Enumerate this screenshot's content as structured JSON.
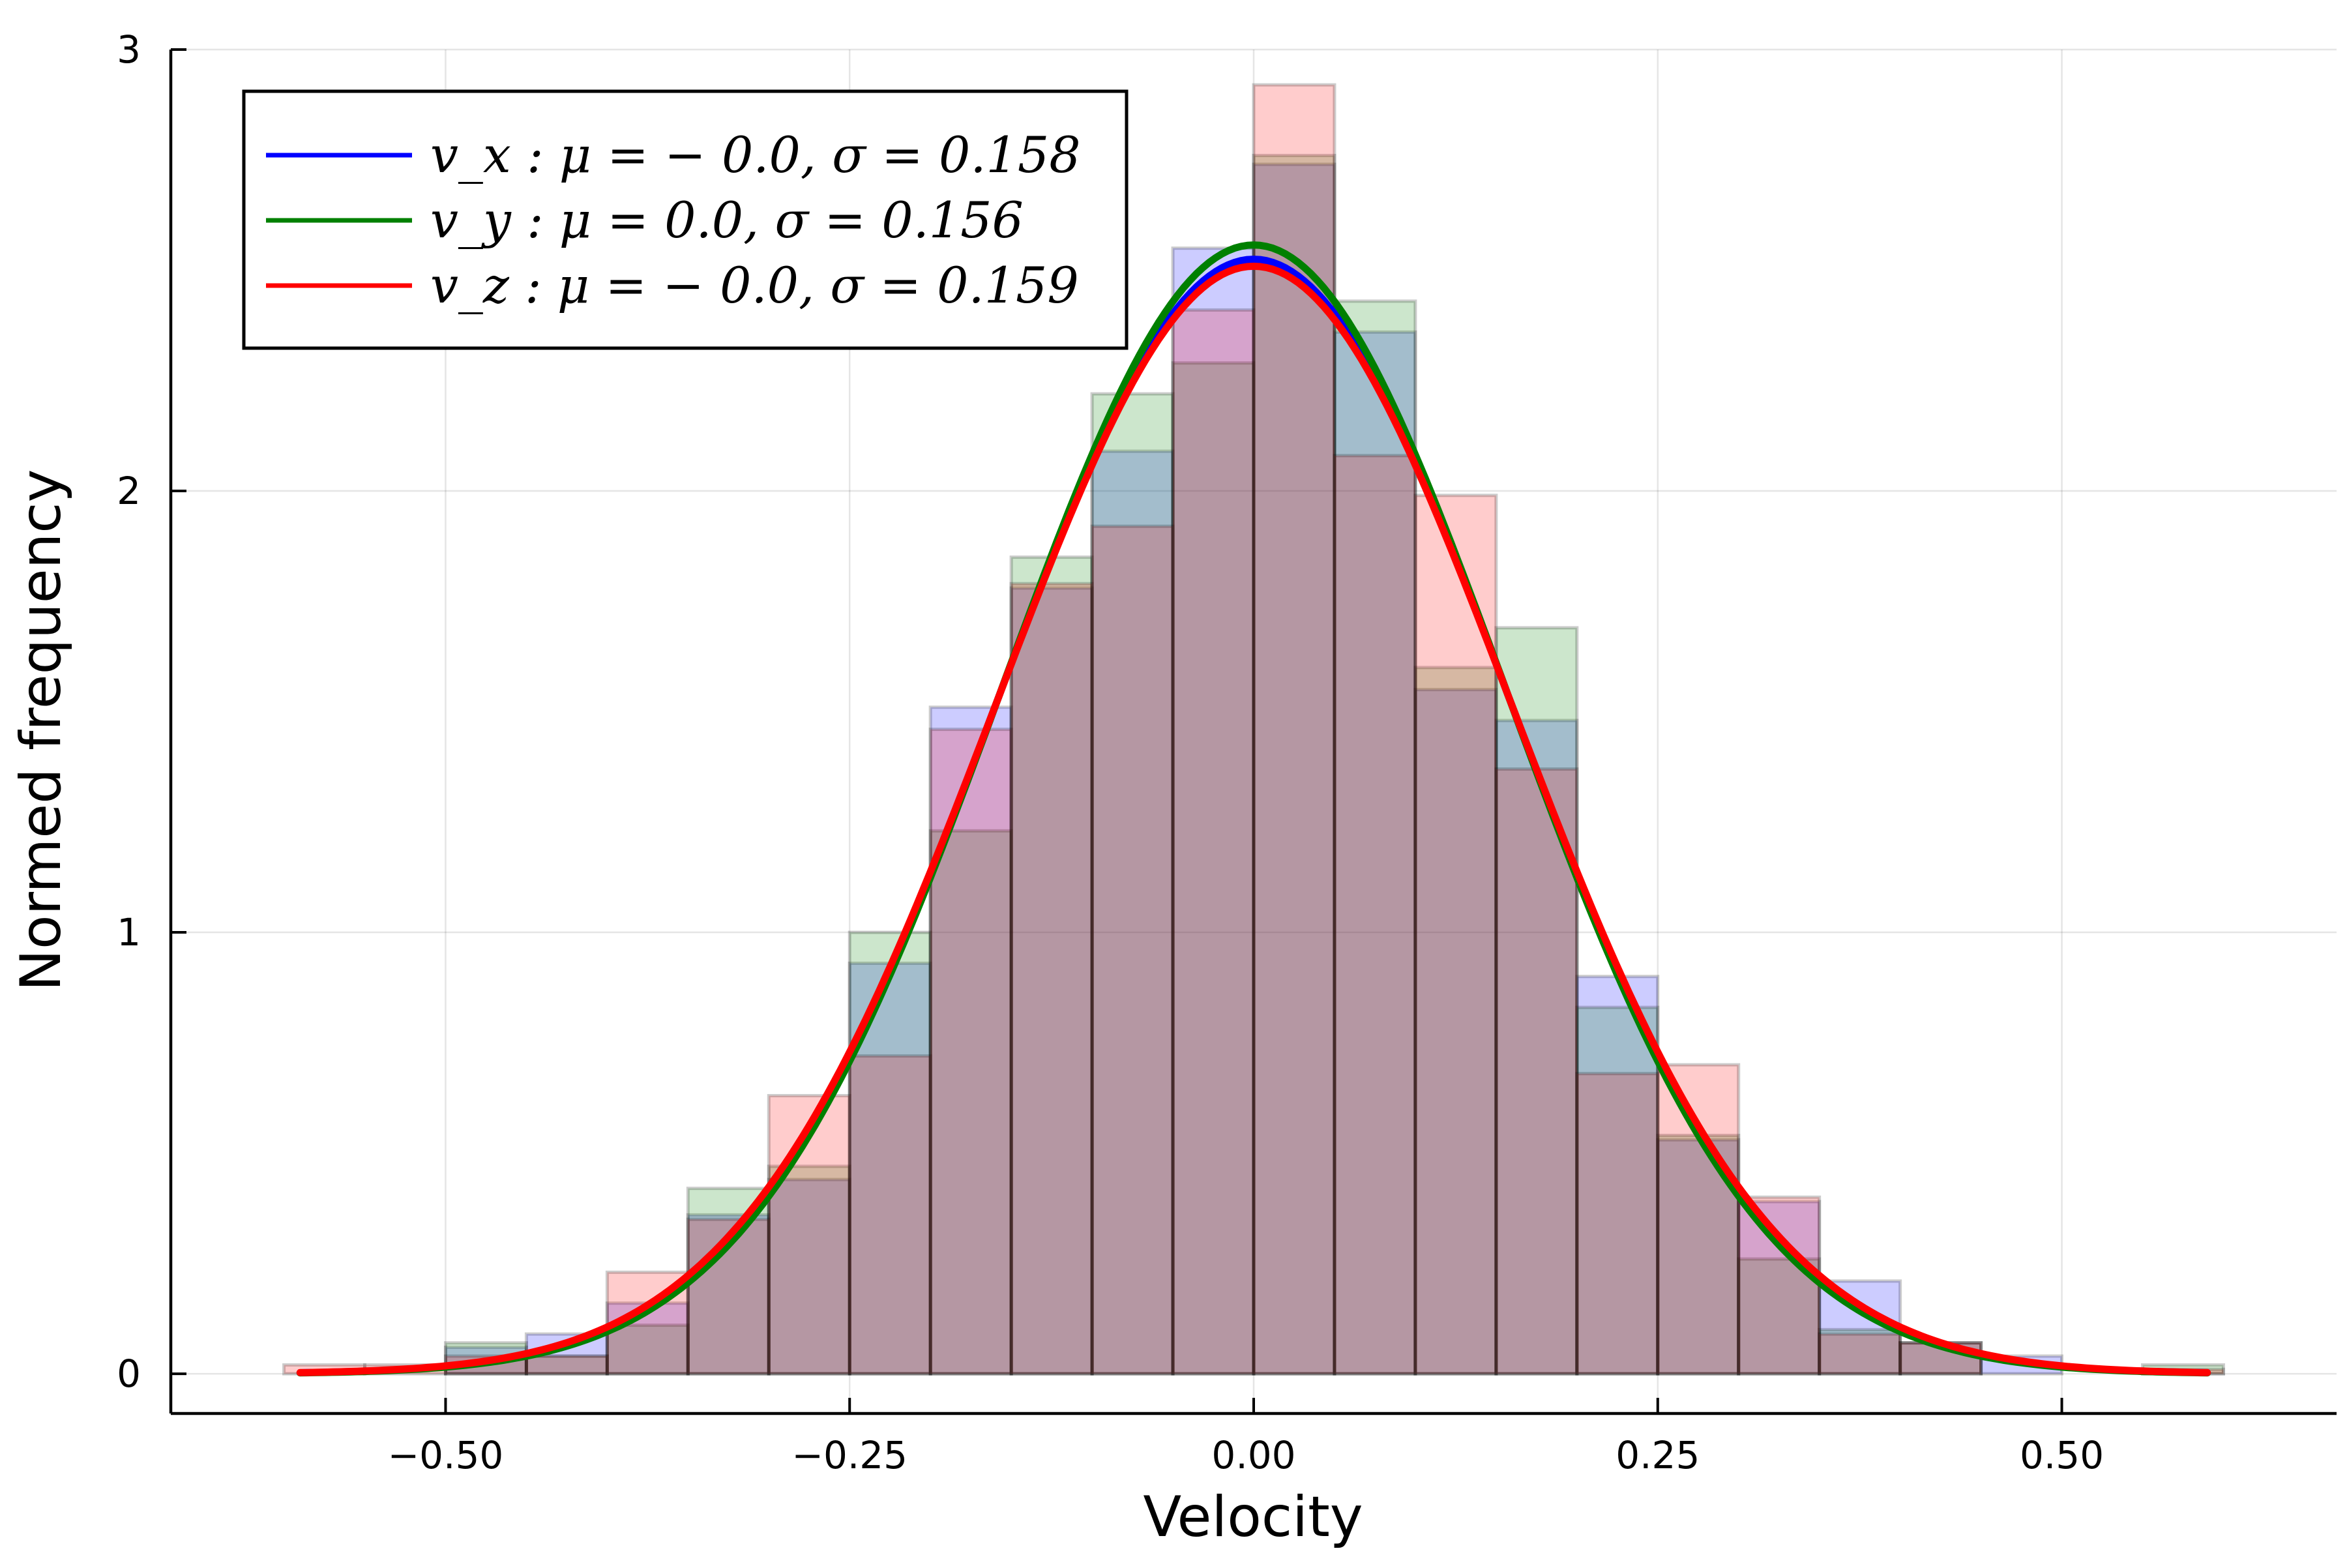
{
  "chart_data": {
    "type": "bar",
    "xlabel": "Velocity",
    "ylabel": "Normed frequency",
    "xlim": [
      -0.67,
      0.67
    ],
    "ylim": [
      -0.09,
      3.0
    ],
    "x_ticks": [
      -0.5,
      -0.25,
      0.0,
      0.25,
      0.5
    ],
    "x_tick_labels": [
      "−0.50",
      "−0.25",
      "0.00",
      "0.25",
      "0.50"
    ],
    "y_ticks": [
      0,
      1,
      2,
      3
    ],
    "y_tick_labels": [
      "0",
      "1",
      "2",
      "3"
    ],
    "grid": true,
    "legend_position": "top-left",
    "bin_edges": [
      -0.6,
      -0.55,
      -0.5,
      -0.45,
      -0.4,
      -0.35,
      -0.3,
      -0.25,
      -0.2,
      -0.15,
      -0.1,
      -0.05,
      0.0,
      0.05,
      0.1,
      0.15,
      0.2,
      0.25,
      0.3,
      0.35,
      0.4,
      0.45,
      0.5,
      0.55,
      0.6
    ],
    "series": [
      {
        "name": "v_x : μ = − 0.0, σ = 0.158",
        "color": "#0000ff",
        "hist_color": "#0000ff",
        "mu": 0.0,
        "sigma": 0.158,
        "hist": [
          0,
          0,
          0.06,
          0.09,
          0.16,
          0.36,
          0.44,
          0.93,
          1.51,
          1.78,
          2.09,
          2.55,
          2.74,
          2.36,
          1.55,
          1.48,
          0.9,
          0.53,
          0.39,
          0.21,
          0.07,
          0.04,
          0,
          0
        ]
      },
      {
        "name": "v_y : μ = 0.0, σ = 0.156",
        "color": "#008000",
        "hist_color": "#008000",
        "mu": 0.0,
        "sigma": 0.156,
        "hist": [
          0,
          0,
          0.07,
          0.04,
          0.11,
          0.42,
          0.47,
          1.0,
          1.23,
          1.85,
          2.22,
          2.29,
          2.76,
          2.43,
          1.6,
          1.69,
          0.83,
          0.54,
          0.26,
          0.1,
          0.07,
          0,
          0,
          0.02
        ]
      },
      {
        "name": "v_z : μ = − 0.0, σ = 0.159",
        "color": "#ff0000",
        "hist_color": "#ff0000",
        "mu": 0.0,
        "sigma": 0.159,
        "hist": [
          0.02,
          0.02,
          0.04,
          0.04,
          0.23,
          0.35,
          0.63,
          0.72,
          1.46,
          1.79,
          1.92,
          2.41,
          2.92,
          2.08,
          1.99,
          1.37,
          0.68,
          0.7,
          0.4,
          0.09,
          0.07,
          0,
          0,
          0.01
        ]
      }
    ]
  }
}
